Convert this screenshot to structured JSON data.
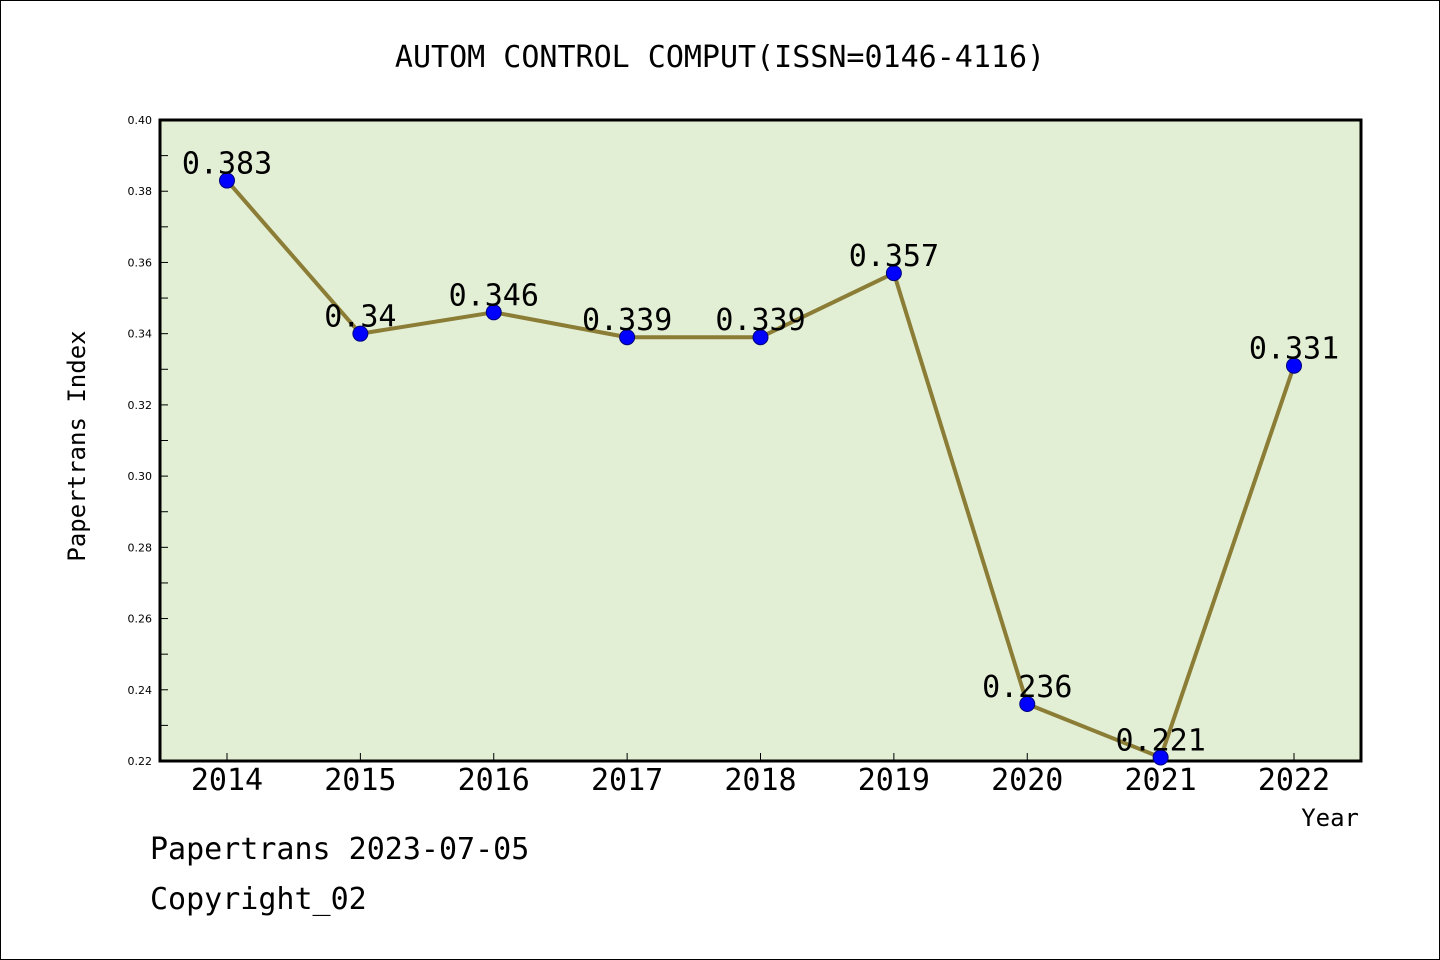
{
  "chart_data": {
    "type": "line",
    "title": "AUTOM CONTROL COMPUT(ISSN=0146-4116)",
    "xlabel": "Year",
    "ylabel": "Papertrans Index",
    "categories": [
      "2014",
      "2015",
      "2016",
      "2017",
      "2018",
      "2019",
      "2020",
      "2021",
      "2022"
    ],
    "series": [
      {
        "values": [
          0.383,
          0.34,
          0.346,
          0.339,
          0.339,
          0.357,
          0.236,
          0.221,
          0.331
        ],
        "labels": [
          "0.383",
          "0.34",
          "0.346",
          "0.339",
          "0.339",
          "0.357",
          "0.236",
          "0.221",
          "0.331"
        ]
      }
    ],
    "ylim": [
      0.22,
      0.4
    ],
    "yticks": [
      "0.22",
      "0.24",
      "0.26",
      "0.28",
      "0.30",
      "0.32",
      "0.34",
      "0.36",
      "0.38",
      "0.40"
    ],
    "grid": false,
    "colors": {
      "plot_background": "#e2efd5",
      "line": "#8b7d35",
      "marker": "#0000ff"
    }
  },
  "footer": {
    "source": "Papertrans 2023-07-05",
    "copyright": "Copyright_02"
  }
}
